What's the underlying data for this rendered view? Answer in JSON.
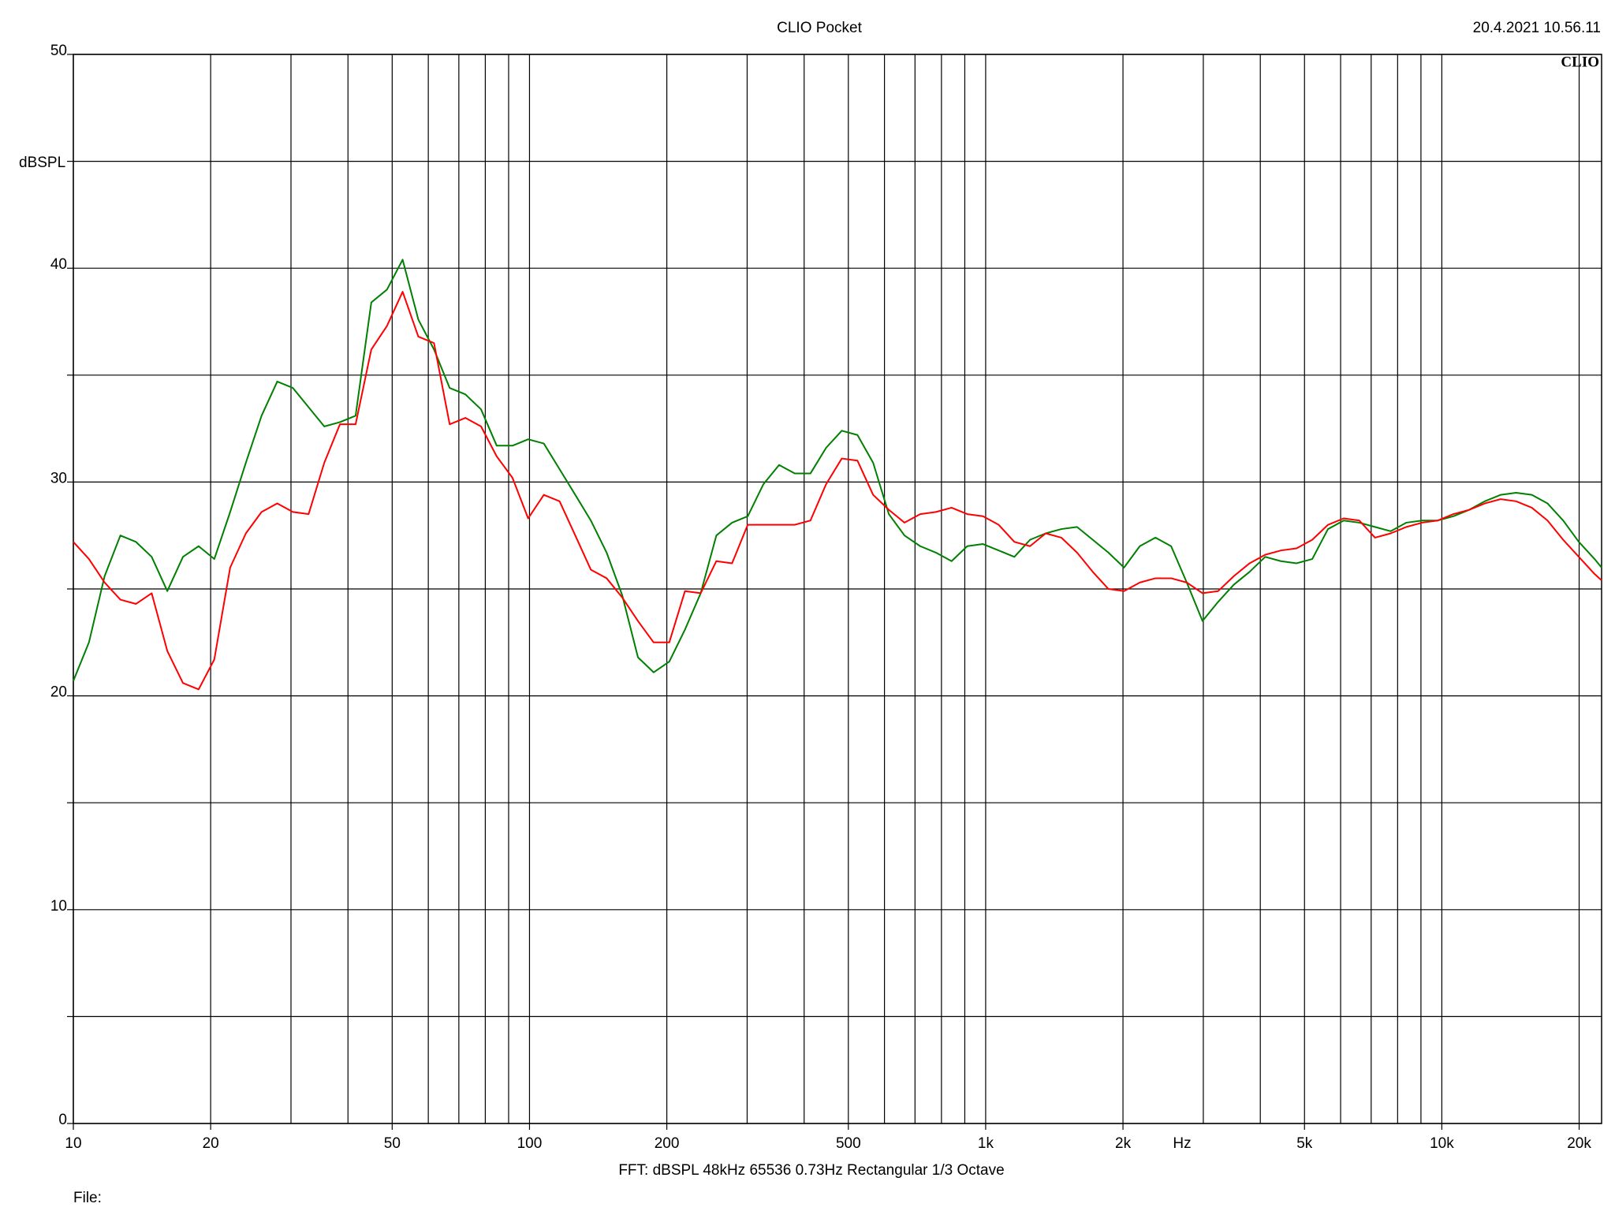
{
  "chart_data": {
    "type": "line",
    "title": "CLIO Pocket",
    "timestamp": "20.4.2021 10.56.11",
    "logo": "CLIO",
    "y_label": "dBSPL",
    "x_label": "Hz",
    "footer": "FFT:  dBSPL  48kHz  65536  0.73Hz  Rectangular  1/3 Octave",
    "file_label": "File:",
    "x_scale": "log",
    "grid": true,
    "xlim": [
      10,
      22400
    ],
    "ylim": [
      0,
      50
    ],
    "xticks": [
      10,
      20,
      50,
      100,
      200,
      500,
      {
        "value": 1000,
        "label": "1k"
      },
      {
        "value": 2000,
        "label": "2k"
      },
      {
        "value": 5000,
        "label": "5k"
      },
      {
        "value": 10000,
        "label": "10k"
      },
      {
        "value": 20000,
        "label": "20k"
      }
    ],
    "minor_xticks": [
      30,
      40,
      60,
      70,
      80,
      90,
      300,
      400,
      600,
      700,
      800,
      900,
      3000,
      4000,
      6000,
      7000,
      8000,
      9000
    ],
    "yticks": [
      0,
      10,
      20,
      30,
      40,
      50
    ],
    "minor_yticks": [
      5,
      15,
      25,
      35,
      45
    ],
    "x": [
      10,
      10.82,
      11.71,
      12.68,
      13.72,
      14.85,
      16.07,
      17.39,
      18.82,
      20.37,
      22.07,
      23.89,
      25.86,
      27.99,
      30.29,
      32.79,
      35.49,
      38.41,
      41.57,
      45.0,
      48.7,
      52.71,
      57.05,
      61.75,
      66.84,
      72.34,
      78.3,
      84.75,
      91.76,
      99.32,
      107.5,
      116.4,
      126.0,
      136.3,
      147.6,
      159.7,
      172.9,
      187.1,
      202.5,
      219.2,
      237.3,
      256.8,
      278.0,
      300.9,
      325.7,
      352.5,
      381.5,
      412.9,
      446.9,
      483.7,
      523.6,
      566.7,
      613.4,
      663.9,
      718.6,
      777.8,
      841.9,
      911.2,
      986.3,
      1068,
      1156,
      1251,
      1354,
      1465,
      1586,
      1717,
      1858,
      2011,
      2177,
      2356,
      2550,
      2760,
      2988,
      3234,
      3500,
      3789,
      4101,
      4439,
      4804,
      5200,
      5629,
      6093,
      6594,
      7137,
      7725,
      8362,
      9050,
      9796,
      10600,
      11480,
      12420,
      13450,
      14550,
      15750,
      17050,
      18450,
      19970,
      21620,
      22400
    ],
    "series": [
      {
        "color": "#008000",
        "values": [
          20.7,
          22.5,
          25.6,
          27.5,
          27.2,
          26.5,
          24.9,
          26.5,
          27.0,
          26.4,
          28.6,
          30.9,
          33.1,
          34.7,
          34.4,
          33.5,
          32.6,
          32.8,
          33.1,
          38.4,
          39.0,
          40.4,
          37.6,
          36.2,
          34.4,
          34.1,
          33.4,
          31.7,
          31.7,
          32.0,
          31.8,
          30.6,
          29.4,
          28.2,
          26.7,
          24.7,
          21.8,
          21.1,
          21.6,
          23.1,
          24.8,
          27.5,
          28.1,
          28.4,
          29.9,
          30.8,
          30.4,
          30.4,
          31.6,
          32.4,
          32.2,
          30.9,
          28.5,
          27.5,
          27.0,
          26.7,
          26.3,
          27.0,
          27.1,
          26.8,
          26.5,
          27.3,
          27.6,
          27.8,
          27.9,
          27.3,
          26.7,
          26.0,
          27.0,
          27.4,
          27.0,
          25.3,
          23.5,
          24.4,
          25.2,
          25.8,
          26.5,
          26.3,
          26.2,
          26.4,
          27.8,
          28.2,
          28.1,
          27.9,
          27.7,
          28.1,
          28.2,
          28.2,
          28.4,
          28.7,
          29.1,
          29.4,
          29.5,
          29.4,
          29.0,
          28.2,
          27.2,
          26.4,
          26.0
        ]
      },
      {
        "color": "#ff0000",
        "values": [
          27.2,
          26.4,
          25.3,
          24.5,
          24.3,
          24.8,
          22.1,
          20.6,
          20.3,
          21.7,
          26.0,
          27.6,
          28.6,
          29.0,
          28.6,
          28.5,
          30.9,
          32.7,
          32.7,
          36.2,
          37.3,
          38.9,
          36.8,
          36.5,
          32.7,
          33.0,
          32.6,
          31.2,
          30.2,
          28.3,
          29.4,
          29.1,
          27.5,
          25.9,
          25.5,
          24.6,
          23.5,
          22.5,
          22.5,
          24.9,
          24.8,
          26.3,
          26.2,
          28.0,
          28.0,
          28.0,
          28.0,
          28.2,
          29.9,
          31.1,
          31.0,
          29.4,
          28.7,
          28.1,
          28.5,
          28.6,
          28.8,
          28.5,
          28.4,
          28.0,
          27.2,
          27.0,
          27.6,
          27.4,
          26.7,
          25.8,
          25.0,
          24.9,
          25.3,
          25.5,
          25.5,
          25.3,
          24.8,
          24.9,
          25.6,
          26.2,
          26.6,
          26.8,
          26.9,
          27.3,
          28.0,
          28.3,
          28.2,
          27.4,
          27.6,
          27.9,
          28.1,
          28.2,
          28.5,
          28.7,
          29.0,
          29.2,
          29.1,
          28.8,
          28.2,
          27.3,
          26.5,
          25.7,
          25.4
        ]
      }
    ]
  }
}
